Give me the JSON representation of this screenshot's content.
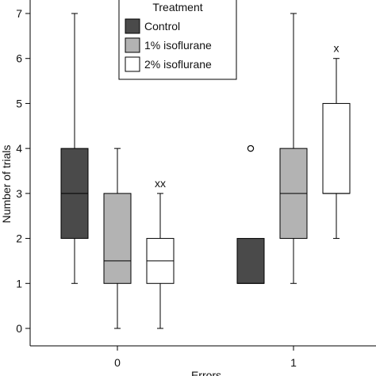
{
  "chart_data": {
    "type": "box",
    "title": "",
    "xlabel": "Errors",
    "ylabel": "Number of trials",
    "categories": [
      "0",
      "1"
    ],
    "ylim": [
      -0.3,
      7.4
    ],
    "yticks": [
      "0",
      "1",
      "2",
      "3",
      "4",
      "5",
      "6",
      "7"
    ],
    "legend": {
      "title": "Treatment",
      "placement": "top-center",
      "entries": [
        "Control",
        "1% isoflurane",
        "2% isoflurane"
      ]
    },
    "series": [
      {
        "name": "Control",
        "color": "#4a4a4a",
        "boxes": [
          {
            "category": "0",
            "whisker_low": 1,
            "q1": 2,
            "median": 3,
            "q3": 4,
            "whisker_high": 7,
            "outliers": []
          },
          {
            "category": "1",
            "whisker_low": 1,
            "q1": 1,
            "median": 1,
            "q3": 2,
            "whisker_high": 2,
            "outliers": [
              4
            ]
          }
        ]
      },
      {
        "name": "1% isoflurane",
        "color": "#b3b3b3",
        "boxes": [
          {
            "category": "0",
            "whisker_low": 0,
            "q1": 1,
            "median": 1.5,
            "q3": 3,
            "whisker_high": 4,
            "outliers": []
          },
          {
            "category": "1",
            "whisker_low": 1,
            "q1": 2,
            "median": 3,
            "q3": 4,
            "whisker_high": 7,
            "outliers": []
          }
        ]
      },
      {
        "name": "2% isoflurane",
        "color": "#ffffff",
        "boxes": [
          {
            "category": "0",
            "whisker_low": 0,
            "q1": 1,
            "median": 1.5,
            "q3": 2,
            "whisker_high": 3,
            "outliers": [],
            "annotation": "xx"
          },
          {
            "category": "1",
            "whisker_low": 2,
            "q1": 3,
            "median": 3,
            "q3": 5,
            "whisker_high": 6,
            "outliers": [],
            "annotation": "x"
          }
        ]
      }
    ]
  }
}
